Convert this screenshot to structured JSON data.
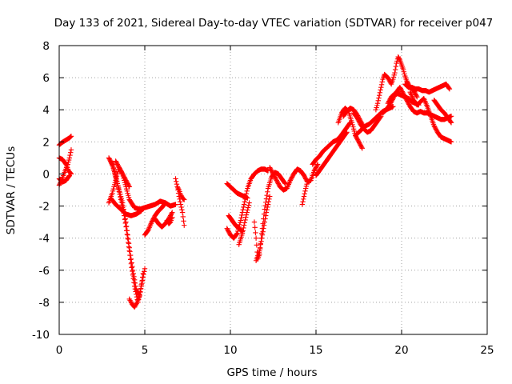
{
  "chart_data": {
    "type": "scatter",
    "title": "Day 133 of 2021, Sidereal Day-to-day VTEC variation (SDTVAR) for receiver p047",
    "xlabel": "GPS time / hours",
    "ylabel": "SDTVAR / TECUs",
    "xlim": [
      0,
      25
    ],
    "ylim": [
      -10,
      8
    ],
    "xticks": [
      0,
      5,
      10,
      15,
      20,
      25
    ],
    "yticks": [
      -10,
      -8,
      -6,
      -4,
      -2,
      0,
      2,
      4,
      6,
      8
    ],
    "xtick_labels": [
      "0",
      "5",
      "10",
      "15",
      "20",
      "25"
    ],
    "ytick_labels": [
      "-10",
      "-8",
      "-6",
      "-4",
      "-2",
      "0",
      "2",
      "4",
      "6",
      "8"
    ],
    "grid": true,
    "marker": "+",
    "color": "#ff0000",
    "series": [
      {
        "x": [
          0.0,
          0.15,
          0.3,
          0.45,
          0.6,
          0.7
        ],
        "y": [
          1.8,
          1.95,
          2.05,
          2.15,
          2.25,
          2.35
        ]
      },
      {
        "x": [
          0.0,
          0.1,
          0.2,
          0.35,
          0.5,
          0.6,
          0.7
        ],
        "y": [
          -0.7,
          -0.5,
          -0.2,
          0.2,
          0.6,
          1.0,
          1.5
        ]
      },
      {
        "x": [
          0.0,
          0.2,
          0.4,
          0.55,
          0.7
        ],
        "y": [
          1.0,
          0.9,
          0.6,
          0.2,
          0.0
        ]
      },
      {
        "x": [
          0.0,
          0.2,
          0.4,
          0.6
        ],
        "y": [
          -0.3,
          -0.5,
          -0.4,
          -0.1
        ]
      },
      {
        "x": [
          2.9,
          3.1,
          3.3,
          3.5,
          3.7,
          3.9,
          4.1,
          4.3,
          4.5,
          4.7,
          4.9
        ],
        "y": [
          1.0,
          0.6,
          -0.2,
          -1.0,
          -1.8,
          -3.0,
          -4.6,
          -6.0,
          -7.2,
          -7.6,
          -6.2
        ]
      },
      {
        "x": [
          3.0,
          3.2,
          3.4,
          3.6,
          3.8,
          4.0,
          4.2,
          4.4,
          4.6,
          4.8,
          5.0
        ],
        "y": [
          0.8,
          0.3,
          -0.6,
          -1.6,
          -2.6,
          -4.0,
          -5.6,
          -7.0,
          -8.0,
          -7.0,
          -5.9
        ]
      },
      {
        "x": [
          4.1,
          4.25,
          4.4,
          4.55,
          4.7
        ],
        "y": [
          -7.8,
          -8.1,
          -8.3,
          -8.0,
          -7.6
        ]
      },
      {
        "x": [
          2.9,
          3.1,
          3.3,
          3.5,
          3.7,
          3.9,
          4.1,
          4.4,
          4.7,
          5.0,
          5.3,
          5.6,
          5.9,
          6.2,
          6.5,
          6.8
        ],
        "y": [
          -1.8,
          -1.2,
          -0.4,
          0.4,
          0.0,
          -0.8,
          -1.6,
          -2.1,
          -2.2,
          -2.1,
          -2.0,
          -1.9,
          -1.7,
          -1.8,
          -2.0,
          -1.9
        ]
      },
      {
        "x": [
          3.0,
          3.3,
          3.6,
          3.9,
          4.2,
          4.5,
          4.8
        ],
        "y": [
          -1.5,
          -1.9,
          -2.2,
          -2.5,
          -2.6,
          -2.5,
          -2.3
        ]
      },
      {
        "x": [
          3.3,
          3.5,
          3.7,
          3.9,
          4.1
        ],
        "y": [
          0.8,
          0.4,
          0.0,
          -0.4,
          -0.8
        ]
      },
      {
        "x": [
          5.0,
          5.2,
          5.4,
          5.6,
          5.8,
          6.0,
          6.2
        ],
        "y": [
          -3.8,
          -3.5,
          -3.0,
          -2.6,
          -2.3,
          -2.1,
          -1.8
        ]
      },
      {
        "x": [
          5.6,
          5.8,
          6.0,
          6.2,
          6.4,
          6.6
        ],
        "y": [
          -2.8,
          -3.1,
          -3.3,
          -3.1,
          -2.8,
          -2.4
        ]
      },
      {
        "x": [
          6.3,
          6.4,
          6.5,
          6.6
        ],
        "y": [
          -2.9,
          -3.1,
          -3.0,
          -2.7
        ]
      },
      {
        "x": [
          6.8,
          6.9,
          7.0,
          7.1,
          7.2,
          7.3
        ],
        "y": [
          -0.3,
          -0.8,
          -1.4,
          -1.9,
          -2.4,
          -3.2
        ]
      },
      {
        "x": [
          6.9,
          7.0,
          7.1,
          7.2,
          7.3
        ],
        "y": [
          -0.8,
          -1.0,
          -1.3,
          -1.5,
          -1.6
        ]
      },
      {
        "x": [
          9.8,
          10.0,
          10.2,
          10.4,
          10.6,
          10.8,
          11.0,
          11.2,
          11.4,
          11.6,
          11.8,
          12.0,
          12.2
        ],
        "y": [
          -3.4,
          -3.8,
          -4.0,
          -3.7,
          -2.9,
          -1.9,
          -0.9,
          -0.3,
          0.0,
          0.2,
          0.3,
          0.3,
          0.2
        ]
      },
      {
        "x": [
          9.8,
          10.0,
          10.2,
          10.4,
          10.6,
          10.8,
          11.0
        ],
        "y": [
          -0.6,
          -0.8,
          -1.0,
          -1.2,
          -1.3,
          -1.4,
          -1.5
        ]
      },
      {
        "x": [
          9.9,
          10.1,
          10.3,
          10.5,
          10.7
        ],
        "y": [
          -2.6,
          -2.9,
          -3.2,
          -3.4,
          -3.6
        ]
      },
      {
        "x": [
          10.5,
          10.7,
          10.9,
          11.1
        ],
        "y": [
          -4.4,
          -3.7,
          -2.7,
          -1.8
        ]
      },
      {
        "x": [
          11.4,
          11.5,
          11.6,
          11.7,
          11.8,
          12.0,
          12.2,
          12.4,
          12.6,
          12.8,
          13.0,
          13.2
        ],
        "y": [
          -3.0,
          -4.0,
          -5.3,
          -5.0,
          -4.0,
          -2.2,
          -0.9,
          -0.2,
          0.1,
          0.0,
          -0.3,
          -0.6
        ]
      },
      {
        "x": [
          11.5,
          11.7,
          11.9,
          12.1,
          12.3
        ],
        "y": [
          -5.4,
          -4.8,
          -3.6,
          -2.4,
          -1.4
        ]
      },
      {
        "x": [
          12.3,
          12.5,
          12.7,
          12.9,
          13.1,
          13.3,
          13.5,
          13.7,
          13.9,
          14.1,
          14.3,
          14.5,
          14.7,
          14.9,
          15.1
        ],
        "y": [
          0.4,
          0.0,
          -0.4,
          -0.8,
          -1.0,
          -0.9,
          -0.4,
          0.0,
          0.3,
          0.2,
          -0.1,
          -0.5,
          -0.4,
          0.2,
          0.6
        ]
      },
      {
        "x": [
          14.2,
          14.3,
          14.4,
          14.5
        ],
        "y": [
          -1.9,
          -1.4,
          -0.9,
          -0.5
        ]
      },
      {
        "x": [
          14.8,
          15.0,
          15.2,
          15.4,
          15.6,
          15.8,
          16.0,
          16.2,
          16.4,
          16.6,
          16.8,
          17.0
        ],
        "y": [
          0.6,
          0.9,
          1.1,
          1.4,
          1.6,
          1.8,
          2.0,
          2.1,
          2.3,
          2.6,
          2.9,
          3.2
        ]
      },
      {
        "x": [
          15.0,
          15.2,
          15.4,
          15.6,
          15.8,
          16.0,
          16.2,
          16.4,
          16.6,
          16.8
        ],
        "y": [
          -0.1,
          0.2,
          0.5,
          0.8,
          1.1,
          1.4,
          1.7,
          2.0,
          2.3,
          2.6
        ]
      },
      {
        "x": [
          16.3,
          16.5,
          16.7,
          16.9,
          17.1,
          17.3,
          17.5,
          17.7
        ],
        "y": [
          3.2,
          3.8,
          4.1,
          3.9,
          3.2,
          2.4,
          2.0,
          1.6
        ]
      },
      {
        "x": [
          16.6,
          16.8,
          17.0,
          17.2,
          17.4,
          17.6,
          17.8
        ],
        "y": [
          3.6,
          3.9,
          4.1,
          4.0,
          3.7,
          3.3,
          2.9
        ]
      },
      {
        "x": [
          17.3,
          17.5,
          17.7,
          17.9,
          18.1,
          18.3,
          18.5,
          18.7,
          18.9,
          19.1,
          19.3,
          19.5
        ],
        "y": [
          2.4,
          2.6,
          2.8,
          3.0,
          3.1,
          3.3,
          3.5,
          3.7,
          3.9,
          4.0,
          4.1,
          4.2
        ]
      },
      {
        "x": [
          17.2,
          17.4,
          17.6,
          17.8,
          18.0,
          18.2,
          18.4,
          18.6,
          18.8
        ],
        "y": [
          3.8,
          3.5,
          3.1,
          2.8,
          2.6,
          2.7,
          3.0,
          3.3,
          3.6
        ]
      },
      {
        "x": [
          18.5,
          18.6,
          18.7,
          18.8,
          18.9,
          19.0,
          19.1,
          19.2,
          19.3,
          19.4,
          19.5,
          19.6,
          19.7,
          19.8,
          19.9,
          20.0,
          20.1,
          20.2,
          20.3,
          20.4,
          20.5,
          20.6,
          20.7,
          20.8,
          20.9
        ],
        "y": [
          4.0,
          4.4,
          4.9,
          5.4,
          5.9,
          6.2,
          6.1,
          6.0,
          5.8,
          5.6,
          5.9,
          6.3,
          6.9,
          7.3,
          7.1,
          6.8,
          6.5,
          6.1,
          5.8,
          5.6,
          5.4,
          5.3,
          5.2,
          5.0,
          4.8
        ]
      },
      {
        "x": [
          18.9,
          19.1,
          19.3,
          19.5,
          19.7,
          19.9,
          20.1,
          20.3,
          20.5,
          20.7,
          20.9,
          21.1,
          21.3,
          21.5,
          21.7,
          21.9,
          22.1,
          22.3,
          22.5,
          22.7,
          22.9
        ],
        "y": [
          3.8,
          4.0,
          4.3,
          4.7,
          5.1,
          5.4,
          5.0,
          4.6,
          4.2,
          3.9,
          3.8,
          3.9,
          3.8,
          3.8,
          3.7,
          3.6,
          3.5,
          3.4,
          3.4,
          3.5,
          3.6
        ]
      },
      {
        "x": [
          20.2,
          20.4,
          20.6,
          20.8,
          21.0,
          21.2,
          21.4,
          21.6,
          21.8,
          22.0,
          22.2,
          22.4,
          22.6,
          22.8
        ],
        "y": [
          5.6,
          5.4,
          5.4,
          5.3,
          5.3,
          5.2,
          5.2,
          5.1,
          5.2,
          5.3,
          5.4,
          5.5,
          5.6,
          5.3
        ]
      },
      {
        "x": [
          20.5,
          20.7,
          20.9,
          21.1,
          21.3,
          21.5,
          21.7,
          21.9,
          22.1,
          22.3,
          22.5,
          22.7,
          22.9
        ],
        "y": [
          5.1,
          4.6,
          4.3,
          4.5,
          4.7,
          4.2,
          3.6,
          3.0,
          2.6,
          2.3,
          2.2,
          2.1,
          2.0
        ]
      },
      {
        "x": [
          21.9,
          22.1,
          22.3,
          22.5,
          22.7,
          22.9
        ],
        "y": [
          4.6,
          4.3,
          4.0,
          3.8,
          3.5,
          3.2
        ]
      },
      {
        "x": [
          19.2,
          19.4,
          19.6,
          19.8,
          20.0,
          20.2,
          20.4,
          20.6,
          20.8,
          21.0
        ],
        "y": [
          4.4,
          4.8,
          5.0,
          5.0,
          4.9,
          4.8,
          4.7,
          4.5,
          4.4,
          4.3
        ]
      }
    ]
  }
}
